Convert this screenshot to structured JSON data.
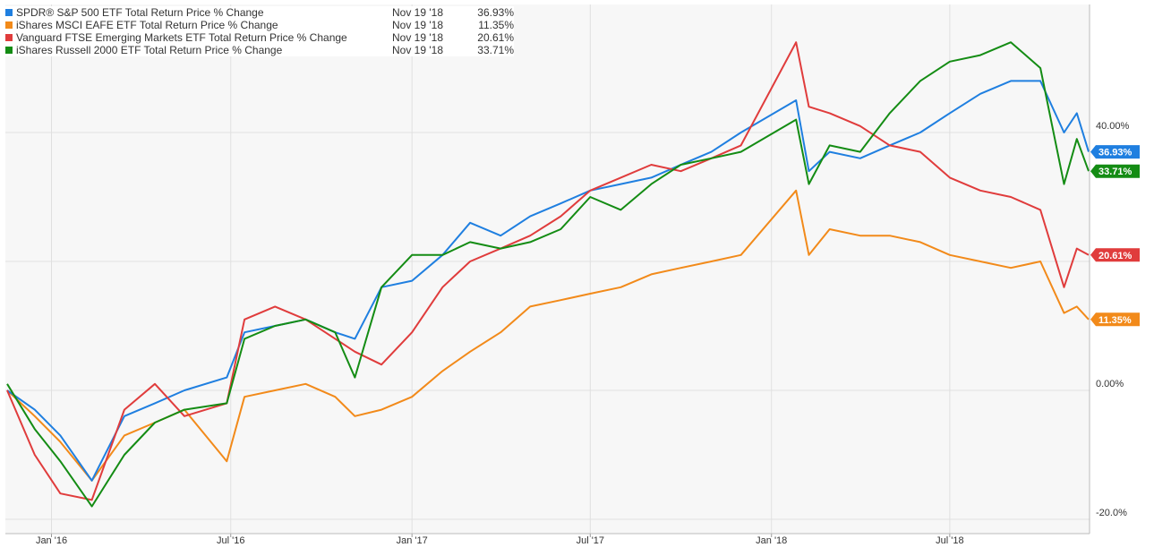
{
  "chart_data": {
    "type": "line",
    "title": "",
    "xlabel": "",
    "ylabel": "",
    "ylim": [
      -20,
      60
    ],
    "grid": true,
    "legend_placement": "top-left",
    "y_ticks": [
      {
        "value": 40,
        "label": "40.00%"
      },
      {
        "value": 0,
        "label": "0.00%"
      },
      {
        "value": -20,
        "label": "-20.0%"
      }
    ],
    "x_ticks": [
      {
        "value": "2016-01-01",
        "label": "Jan '16"
      },
      {
        "value": "2016-07-01",
        "label": "Jul '16"
      },
      {
        "value": "2017-01-01",
        "label": "Jan '17"
      },
      {
        "value": "2017-07-01",
        "label": "Jul '17"
      },
      {
        "value": "2018-01-01",
        "label": "Jan '18"
      },
      {
        "value": "2018-07-01",
        "label": "Jul '18"
      }
    ],
    "x_range": [
      "2015-11-17",
      "2018-11-19"
    ],
    "series": [
      {
        "name": "SPDR® S&P 500 ETF Total Return Price % Change",
        "date": "Nov 19 '18",
        "value_label": "36.93%",
        "color": "#1f7fe0",
        "x": [
          "2015-11-17",
          "2015-12-15",
          "2016-01-10",
          "2016-02-11",
          "2016-03-15",
          "2016-04-15",
          "2016-05-15",
          "2016-06-27",
          "2016-07-15",
          "2016-08-15",
          "2016-09-15",
          "2016-10-15",
          "2016-11-04",
          "2016-12-01",
          "2017-01-01",
          "2017-02-01",
          "2017-03-01",
          "2017-04-01",
          "2017-05-01",
          "2017-06-01",
          "2017-07-01",
          "2017-08-01",
          "2017-09-01",
          "2017-10-01",
          "2017-11-01",
          "2017-12-01",
          "2018-01-26",
          "2018-02-08",
          "2018-03-01",
          "2018-04-01",
          "2018-05-01",
          "2018-06-01",
          "2018-07-01",
          "2018-08-01",
          "2018-09-01",
          "2018-10-01",
          "2018-10-25",
          "2018-11-07",
          "2018-11-19"
        ],
        "values": [
          0,
          -3,
          -7,
          -14,
          -4,
          -2,
          0,
          2,
          9,
          10,
          11,
          9,
          8,
          16,
          17,
          21,
          26,
          24,
          27,
          29,
          31,
          32,
          33,
          35,
          37,
          40,
          45,
          34,
          37,
          36,
          38,
          40,
          43,
          46,
          48,
          48,
          40,
          43,
          37
        ]
      },
      {
        "name": "iShares MSCI EAFE ETF Total Return Price % Change",
        "date": "Nov 19 '18",
        "value_label": "11.35%",
        "color": "#f28a1a",
        "x": [
          "2015-11-17",
          "2015-12-15",
          "2016-01-10",
          "2016-02-11",
          "2016-03-15",
          "2016-04-15",
          "2016-05-15",
          "2016-06-27",
          "2016-07-15",
          "2016-08-15",
          "2016-09-15",
          "2016-10-15",
          "2016-11-04",
          "2016-12-01",
          "2017-01-01",
          "2017-02-01",
          "2017-03-01",
          "2017-04-01",
          "2017-05-01",
          "2017-06-01",
          "2017-07-01",
          "2017-08-01",
          "2017-09-01",
          "2017-10-01",
          "2017-11-01",
          "2017-12-01",
          "2018-01-26",
          "2018-02-08",
          "2018-03-01",
          "2018-04-01",
          "2018-05-01",
          "2018-06-01",
          "2018-07-01",
          "2018-08-01",
          "2018-09-01",
          "2018-10-01",
          "2018-10-25",
          "2018-11-07",
          "2018-11-19"
        ],
        "values": [
          0,
          -4,
          -8,
          -14,
          -7,
          -5,
          -3,
          -11,
          -1,
          0,
          1,
          -1,
          -4,
          -3,
          -1,
          3,
          6,
          9,
          13,
          14,
          15,
          16,
          18,
          19,
          20,
          21,
          31,
          21,
          25,
          24,
          24,
          23,
          21,
          20,
          19,
          20,
          12,
          13,
          11
        ]
      },
      {
        "name": "Vanguard FTSE Emerging Markets ETF Total Return Price % Change",
        "date": "Nov 19 '18",
        "value_label": "20.61%",
        "color": "#e03c3c",
        "x": [
          "2015-11-17",
          "2015-12-15",
          "2016-01-10",
          "2016-02-11",
          "2016-03-15",
          "2016-04-15",
          "2016-05-15",
          "2016-06-27",
          "2016-07-15",
          "2016-08-15",
          "2016-09-15",
          "2016-10-15",
          "2016-11-04",
          "2016-12-01",
          "2017-01-01",
          "2017-02-01",
          "2017-03-01",
          "2017-04-01",
          "2017-05-01",
          "2017-06-01",
          "2017-07-01",
          "2017-08-01",
          "2017-09-01",
          "2017-10-01",
          "2017-11-01",
          "2017-12-01",
          "2018-01-26",
          "2018-02-08",
          "2018-03-01",
          "2018-04-01",
          "2018-05-01",
          "2018-06-01",
          "2018-07-01",
          "2018-08-01",
          "2018-09-01",
          "2018-10-01",
          "2018-10-25",
          "2018-11-07",
          "2018-11-19"
        ],
        "values": [
          0,
          -10,
          -16,
          -17,
          -3,
          1,
          -4,
          -2,
          11,
          13,
          11,
          8,
          6,
          4,
          9,
          16,
          20,
          22,
          24,
          27,
          31,
          33,
          35,
          34,
          36,
          38,
          54,
          44,
          43,
          41,
          38,
          37,
          33,
          31,
          30,
          28,
          16,
          22,
          21
        ]
      },
      {
        "name": "iShares Russell 2000 ETF Total Return Price % Change",
        "date": "Nov 19 '18",
        "value_label": "33.71%",
        "color": "#148c14",
        "x": [
          "2015-11-17",
          "2015-12-15",
          "2016-01-10",
          "2016-02-11",
          "2016-03-15",
          "2016-04-15",
          "2016-05-15",
          "2016-06-27",
          "2016-07-15",
          "2016-08-15",
          "2016-09-15",
          "2016-10-15",
          "2016-11-04",
          "2016-12-01",
          "2017-01-01",
          "2017-02-01",
          "2017-03-01",
          "2017-04-01",
          "2017-05-01",
          "2017-06-01",
          "2017-07-01",
          "2017-08-01",
          "2017-09-01",
          "2017-10-01",
          "2017-11-01",
          "2017-12-01",
          "2018-01-26",
          "2018-02-08",
          "2018-03-01",
          "2018-04-01",
          "2018-05-01",
          "2018-06-01",
          "2018-07-01",
          "2018-08-01",
          "2018-09-01",
          "2018-10-01",
          "2018-10-25",
          "2018-11-07",
          "2018-11-19"
        ],
        "values": [
          1,
          -6,
          -11,
          -18,
          -10,
          -5,
          -3,
          -2,
          8,
          10,
          11,
          9,
          2,
          16,
          21,
          21,
          23,
          22,
          23,
          25,
          30,
          28,
          32,
          35,
          36,
          37,
          42,
          32,
          38,
          37,
          43,
          48,
          51,
          52,
          54,
          50,
          32,
          39,
          34
        ]
      }
    ]
  }
}
